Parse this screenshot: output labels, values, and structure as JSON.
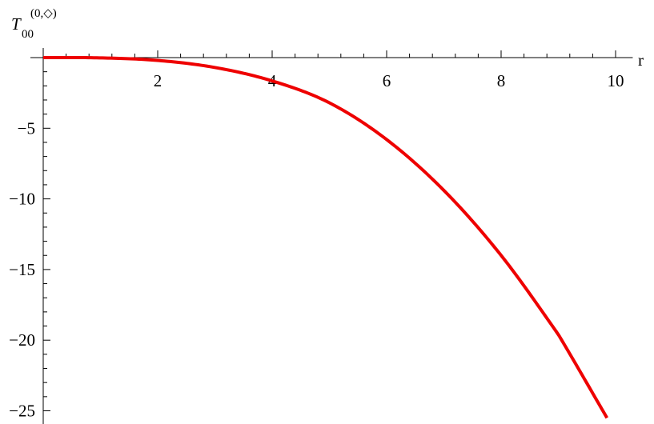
{
  "chart_data": {
    "type": "line",
    "title": "",
    "xlabel": "r",
    "ylabel": {
      "main": "T",
      "subscript": "00",
      "superscript": "(0,◇)"
    },
    "xlim": [
      0,
      10.3
    ],
    "ylim": [
      -25.5,
      1.0
    ],
    "x_ticks": [
      2,
      4,
      6,
      8,
      10
    ],
    "x_tick_labels": [
      "2",
      "4",
      "6",
      "8",
      "10"
    ],
    "y_ticks": [
      -5,
      -10,
      -15,
      -20,
      -25
    ],
    "y_tick_labels": [
      "−5",
      "−10",
      "−15",
      "−20",
      "−25"
    ],
    "grid": false,
    "series": [
      {
        "color": "#ee0000",
        "x": [
          0,
          1,
          2,
          3,
          4,
          5,
          6,
          7,
          8,
          9,
          9.85
        ],
        "y": [
          0,
          -0.02,
          -0.2,
          -0.7,
          -1.65,
          -3.2,
          -5.8,
          -9.4,
          -14.0,
          -19.6,
          -25.5
        ]
      }
    ]
  }
}
